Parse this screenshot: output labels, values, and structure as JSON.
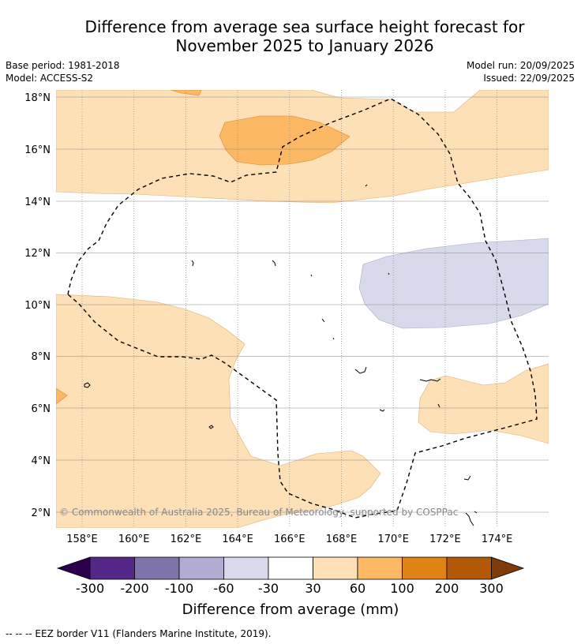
{
  "title": {
    "line1": "Difference from average sea surface height forecast for",
    "line2": "November 2025 to January 2026"
  },
  "meta": {
    "base_period": "Base period: 1981-2018",
    "model": "Model: ACCESS-S2",
    "model_run": "Model run: 20/09/2025",
    "issued": "Issued: 22/09/2025"
  },
  "map": {
    "lat_labels": [
      "18°N",
      "16°N",
      "14°N",
      "12°N",
      "10°N",
      "8°N",
      "6°N",
      "4°N",
      "2°N"
    ],
    "lon_labels": [
      "158°E",
      "160°E",
      "162°E",
      "164°E",
      "166°E",
      "168°E",
      "170°E",
      "172°E",
      "174°E"
    ],
    "copyright": "© Commonwealth of Australia 2025, Bureau of Meteorology, supported by COSPPac"
  },
  "colorbar": {
    "title": "Difference from average (mm)",
    "tick_labels": [
      "-300",
      "-200",
      "-100",
      "-60",
      "-30",
      "30",
      "60",
      "100",
      "200",
      "300"
    ],
    "colors": [
      "#2d004b",
      "#542788",
      "#8073ac",
      "#b2abd2",
      "#d8daeb",
      "#ffffff",
      "#fee0b6",
      "#fdb863",
      "#e08214",
      "#b35806",
      "#7f3b08"
    ]
  },
  "footnote": "--  --  -- EEZ border V11 (Flanders Marine Institute, 2019)."
}
